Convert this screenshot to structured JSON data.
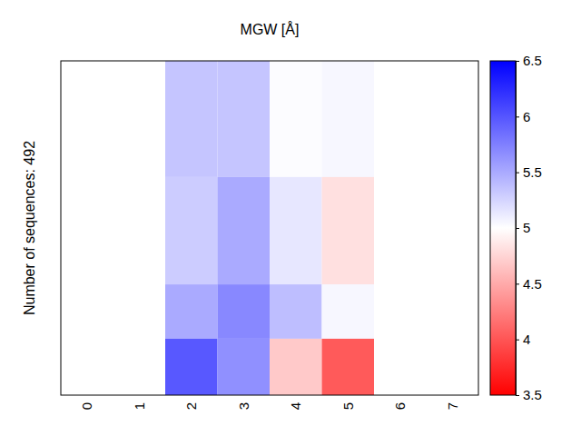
{
  "chart_data": {
    "type": "heatmap",
    "title": "MGW [Å]",
    "y_label": "Number of sequences: 492",
    "categories": [
      "0",
      "1",
      "2",
      "3",
      "4",
      "5",
      "6",
      "7"
    ],
    "row_counts": [
      171,
      158,
      80,
      83
    ],
    "cells": [
      [
        null,
        null,
        5.34,
        5.34,
        5.02,
        5.05,
        null,
        null
      ],
      [
        null,
        null,
        5.3,
        5.5,
        5.14,
        4.82,
        null,
        null
      ],
      [
        null,
        null,
        5.5,
        5.7,
        5.38,
        5.05,
        null,
        null
      ],
      [
        null,
        null,
        5.98,
        5.65,
        4.68,
        4.03,
        null,
        null
      ]
    ],
    "color_range": [
      3.5,
      6.5
    ],
    "color_ticks": [
      3.5,
      4,
      4.5,
      5,
      5.5,
      6,
      6.5
    ],
    "tick_labels": "x"
  }
}
